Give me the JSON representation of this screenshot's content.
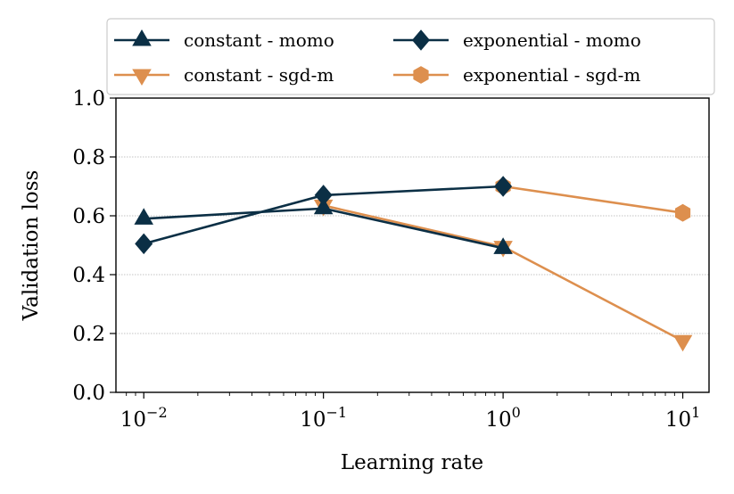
{
  "chart_data": {
    "type": "line",
    "title": "",
    "xlabel": "Learning rate",
    "ylabel": "Validation loss",
    "xscale": "log",
    "xlim": [
      0.007,
      14
    ],
    "ylim": [
      0.0,
      1.0
    ],
    "xticks": [
      {
        "value": 0.01,
        "base": "10",
        "exp": "−2"
      },
      {
        "value": 0.1,
        "base": "10",
        "exp": "−1"
      },
      {
        "value": 1,
        "base": "10",
        "exp": "0"
      },
      {
        "value": 10,
        "base": "10",
        "exp": "1"
      }
    ],
    "yticks": [
      "0.0",
      "0.2",
      "0.4",
      "0.6",
      "0.8",
      "1.0"
    ],
    "grid": "horizontal dotted",
    "legend_position": "top",
    "series": [
      {
        "name": "constant - sgd-m",
        "color": "#dd8f4e",
        "marker": "triangle-down",
        "x": [
          0.1,
          1,
          10
        ],
        "y": [
          0.635,
          0.495,
          0.175
        ]
      },
      {
        "name": "exponential - sgd-m",
        "color": "#dd8f4e",
        "marker": "hexagon",
        "x": [
          1,
          10
        ],
        "y": [
          0.7,
          0.61
        ]
      },
      {
        "name": "constant - momo",
        "color": "#0b2f45",
        "marker": "triangle-up",
        "x": [
          0.01,
          0.1,
          1
        ],
        "y": [
          0.59,
          0.625,
          0.49
        ]
      },
      {
        "name": "exponential - momo",
        "color": "#0b2f45",
        "marker": "diamond",
        "x": [
          0.01,
          0.1,
          1
        ],
        "y": [
          0.505,
          0.67,
          0.7
        ]
      }
    ],
    "legend": [
      {
        "name": "constant - momo",
        "color": "#0b2f45",
        "marker": "triangle-up"
      },
      {
        "name": "exponential - momo",
        "color": "#0b2f45",
        "marker": "diamond"
      },
      {
        "name": "constant - sgd-m",
        "color": "#dd8f4e",
        "marker": "triangle-down"
      },
      {
        "name": "exponential - sgd-m",
        "color": "#dd8f4e",
        "marker": "hexagon"
      }
    ]
  }
}
